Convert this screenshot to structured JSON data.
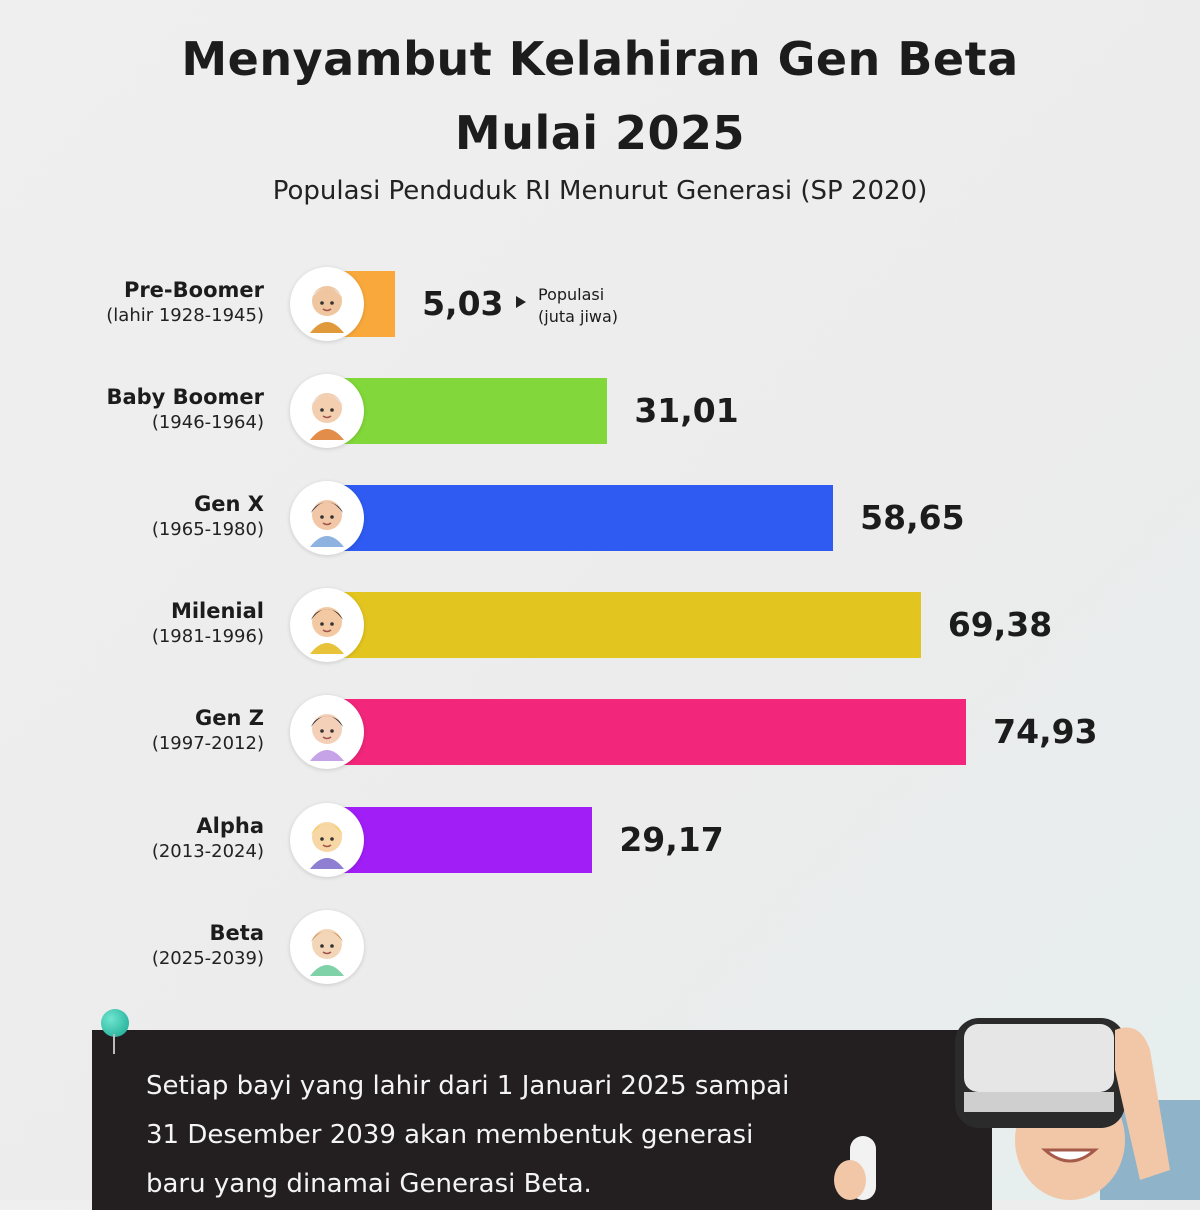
{
  "title_line1": "Menyambut Kelahiran Gen Beta",
  "title_line2": "Mulai 2025",
  "subtitle": "Populasi Penduduk RI Menurut Generasi (SP 2020)",
  "unit_note_line1": "Populasi",
  "unit_note_line2": "(juta jiwa)",
  "chart_data": {
    "type": "bar",
    "orientation": "horizontal",
    "title": "Populasi Penduduk RI Menurut Generasi (SP 2020)",
    "unit": "Populasi (juta jiwa)",
    "categories": [
      "Pre-Boomer",
      "Baby Boomer",
      "Gen X",
      "Milenial",
      "Gen Z",
      "Alpha",
      "Beta"
    ],
    "category_years": [
      "(lahir 1928-1945)",
      "(1946-1964)",
      "(1965-1980)",
      "(1981-1996)",
      "(1997-2012)",
      "(2013-2024)",
      "(2025-2039)"
    ],
    "values": [
      5.03,
      31.01,
      58.65,
      69.38,
      74.93,
      29.17,
      null
    ],
    "value_labels": [
      "5,03",
      "31,01",
      "58,65",
      "69,38",
      "74,93",
      "29,17",
      ""
    ],
    "colors": [
      "#f9a93b",
      "#82d83a",
      "#2f5bf3",
      "#e3c51f",
      "#f2267a",
      "#a11ef7",
      "#cccccc"
    ],
    "grid": false,
    "legend": "none"
  },
  "note_text_line1": "Setiap bayi yang lahir dari 1 Januari 2025 sampai",
  "note_text_line2": "31 Desember 2039 akan membentuk generasi",
  "note_text_line3": "baru yang dinamai Generasi Beta."
}
